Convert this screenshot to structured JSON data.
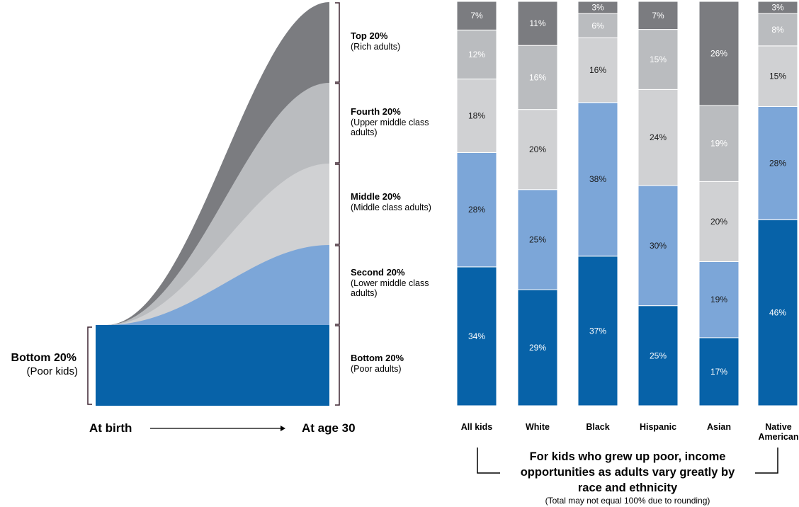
{
  "colors": {
    "bottom": "#0762a8",
    "second": "#7ca6d8",
    "middle": "#d0d1d3",
    "fourth": "#babcbf",
    "top": "#7b7c80",
    "bracket": "#3d2430"
  },
  "flow": {
    "start_label_line1": "Bottom 20%",
    "start_label_line2": "(Poor kids)",
    "from_label": "At birth",
    "to_label": "At age 30",
    "quintiles": [
      {
        "key": "top",
        "line1": "Top 20%",
        "line2": "(Rich adults)",
        "line3": ""
      },
      {
        "key": "fourth",
        "line1": "Fourth 20%",
        "line2": "(Upper middle class",
        "line3": "adults)"
      },
      {
        "key": "middle",
        "line1": "Middle 20%",
        "line2": "(Middle class adults)",
        "line3": ""
      },
      {
        "key": "second",
        "line1": "Second 20%",
        "line2": "(Lower middle class",
        "line3": "adults)"
      },
      {
        "key": "bottom",
        "line1": "Bottom 20%",
        "line2": "(Poor adults)",
        "line3": ""
      }
    ]
  },
  "chart_data": {
    "type": "bar",
    "stacked": true,
    "categories": [
      "All kids",
      "White",
      "Black",
      "Hispanic",
      "Asian",
      "Native American"
    ],
    "series": [
      {
        "key": "bottom",
        "name": "Bottom 20%",
        "values": [
          34,
          29,
          37,
          25,
          17,
          46
        ]
      },
      {
        "key": "second",
        "name": "Second 20%",
        "values": [
          28,
          25,
          38,
          30,
          19,
          28
        ]
      },
      {
        "key": "middle",
        "name": "Middle 20%",
        "values": [
          18,
          20,
          16,
          24,
          20,
          15
        ]
      },
      {
        "key": "fourth",
        "name": "Fourth 20%",
        "values": [
          12,
          16,
          6,
          15,
          19,
          8
        ]
      },
      {
        "key": "top",
        "name": "Top 20%",
        "values": [
          7,
          11,
          3,
          7,
          26,
          3
        ]
      }
    ],
    "value_suffix": "%"
  },
  "note": {
    "line1": "For kids who grew up poor, income",
    "line2": "opportunities as adults vary greatly by",
    "line3": "race and ethnicity",
    "sub": "(Total may not equal 100% due to rounding)"
  }
}
